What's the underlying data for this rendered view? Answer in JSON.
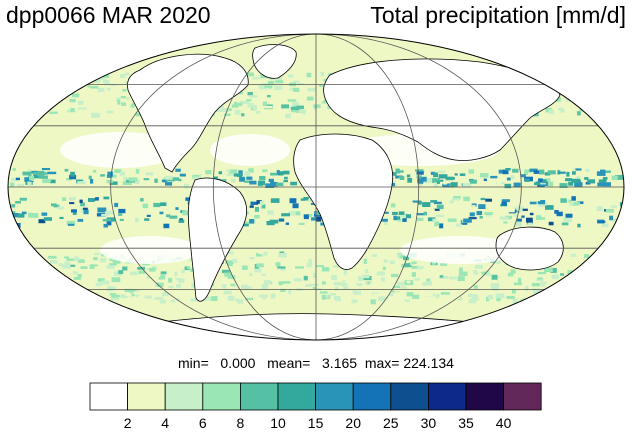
{
  "header": {
    "run_label": "dpp0066 MAR 2020",
    "variable_label": "Total precipitation [mm/d]"
  },
  "stats": {
    "min_label": "min=",
    "min_value": "0.000",
    "mean_label": "mean=",
    "mean_value": "3.165",
    "max_label": "max=",
    "max_value": "224.134"
  },
  "colorbar": {
    "ticks": [
      "2",
      "4",
      "6",
      "8",
      "10",
      "15",
      "20",
      "25",
      "30",
      "35",
      "40"
    ],
    "colors": [
      "#ffffff",
      "#edf8c4",
      "#c7efc9",
      "#9ae6b4",
      "#56c0a4",
      "#33a89c",
      "#2a93b8",
      "#1473b5",
      "#0d4f8f",
      "#0b2a8a",
      "#200848",
      "#62285a"
    ]
  },
  "map": {
    "projection": "mollweide",
    "gridlines": true,
    "land_fill": "#ffffff",
    "coast_color": "#000000"
  }
}
